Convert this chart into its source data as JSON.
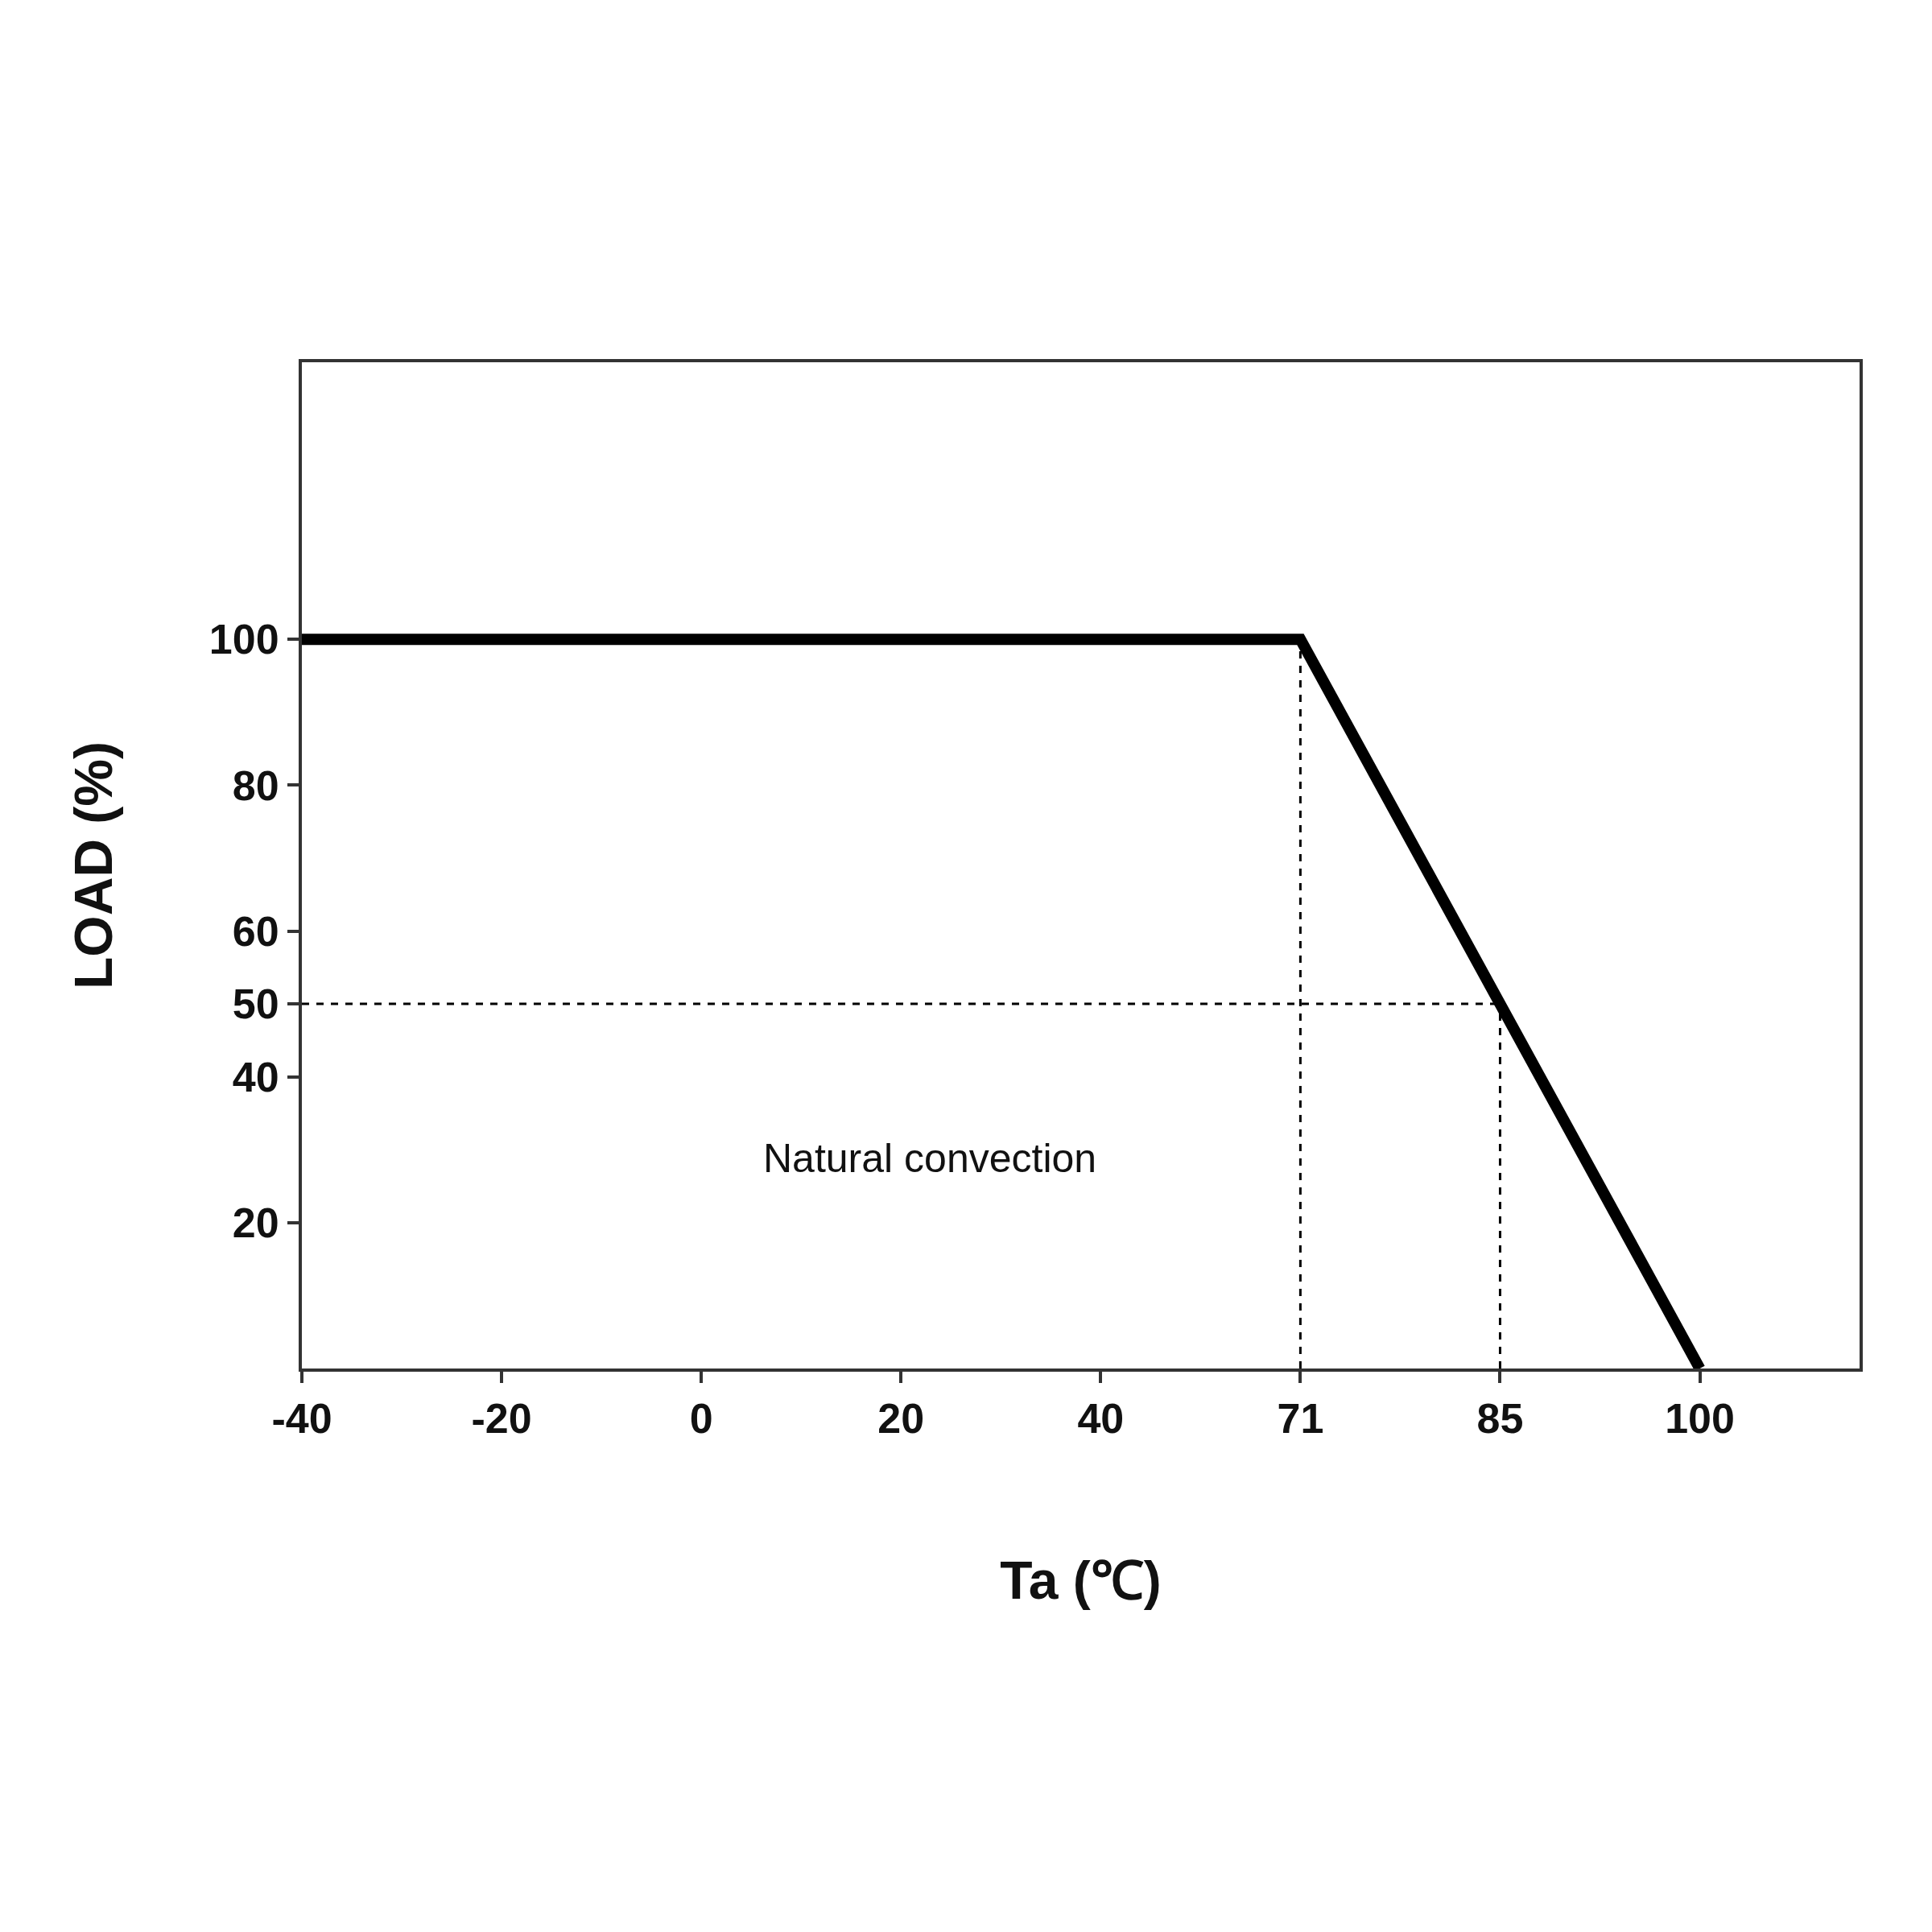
{
  "chart_data": {
    "type": "line",
    "xlabel": "Ta (℃)",
    "ylabel": "LOAD (%)",
    "categories": [
      "-40",
      "-20",
      "0",
      "20",
      "40",
      "71",
      "85",
      "100"
    ],
    "ylim": [
      0,
      138
    ],
    "yticks": [
      20,
      40,
      50,
      60,
      80,
      100
    ],
    "grid": false,
    "marker": "none",
    "series": [
      {
        "color": "#000000",
        "x": [
          "-40",
          "71",
          "85",
          "100"
        ],
        "values": [
          100,
          100,
          50,
          0
        ],
        "line_style": "solid"
      },
      {
        "color": "#000000",
        "x": [
          "71",
          "71"
        ],
        "values": [
          0,
          100
        ],
        "line_style": "dashed"
      },
      {
        "color": "#000000",
        "x": [
          "85",
          "85"
        ],
        "values": [
          0,
          50
        ],
        "line_style": "dashed"
      },
      {
        "color": "#000000",
        "x": [
          "-40",
          "85"
        ],
        "values": [
          50,
          50
        ],
        "line_style": "dashed"
      }
    ],
    "annotations": [
      "Natural convection"
    ]
  }
}
